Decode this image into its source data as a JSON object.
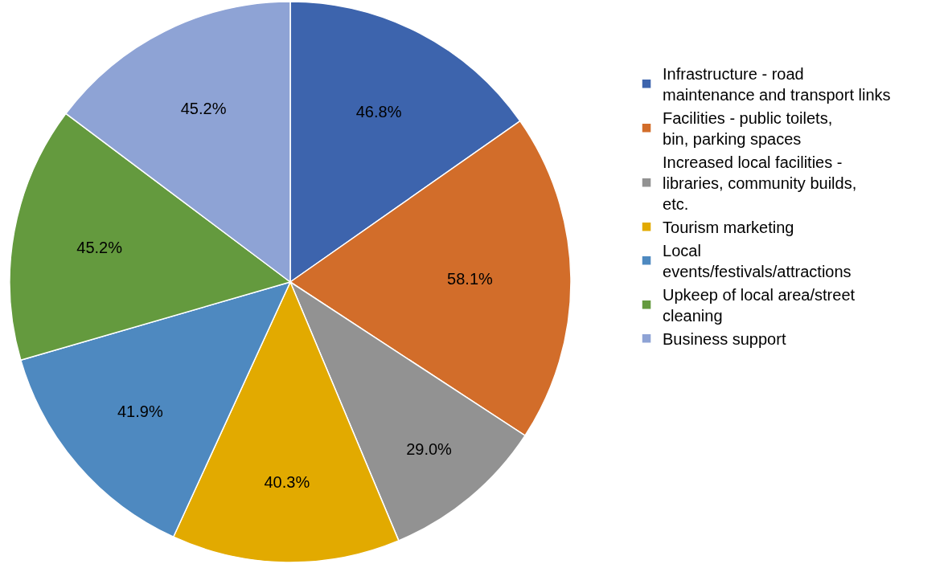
{
  "chart_data": {
    "type": "pie",
    "categories": [
      "Infrastructure - road maintenance and transport links",
      "Facilities - public toilets, bin, parking spaces",
      "Increased local facilities - libraries, community builds, etc.",
      "Tourism marketing",
      "Local events/festivals/attractions",
      "Upkeep of local area/street cleaning",
      "Business support"
    ],
    "values": [
      46.8,
      58.1,
      29.0,
      40.3,
      41.9,
      45.2,
      45.2
    ],
    "value_labels": [
      "46.8%",
      "58.1%",
      "29.0%",
      "40.3%",
      "41.9%",
      "45.2%",
      "45.2%"
    ],
    "colors": [
      "#3d64ad",
      "#d26d2a",
      "#929292",
      "#e2aa00",
      "#4e89c0",
      "#649a3e",
      "#8ea3d5"
    ],
    "legend": "right"
  }
}
